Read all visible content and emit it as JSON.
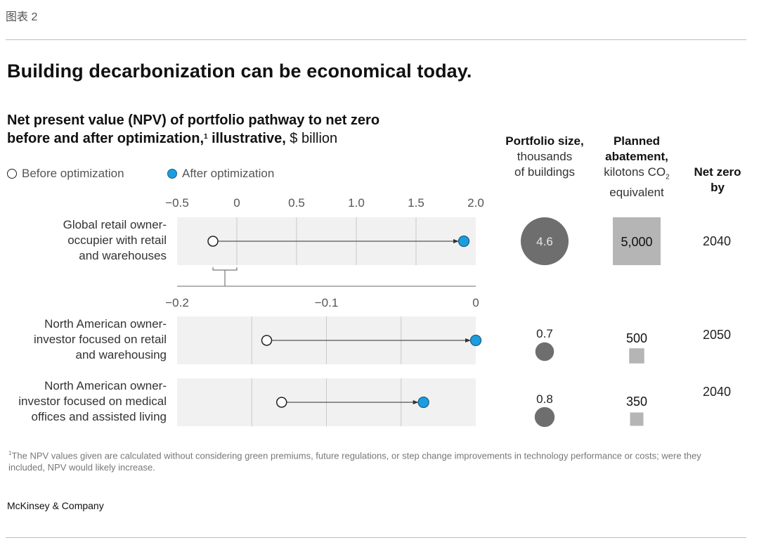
{
  "header": {
    "exhibit_label": "图表 2",
    "title": "Building decarbonization can be economical today.",
    "subtitle_line1": "Net present value (NPV) of portfolio pathway to net zero",
    "subtitle_line2_bold": "before and after optimization,",
    "subtitle_footnote_mark": "1",
    "subtitle_line2_bold_b": " illustrative,",
    "subtitle_unit": " $ billion"
  },
  "legend": {
    "before": "Before optimization",
    "after": "After optimization"
  },
  "columns": {
    "portfolio": {
      "bold": "Portfolio size,",
      "rest_line1": "thousands",
      "rest_line2": "of buildings"
    },
    "abatement": {
      "bold_line1": "Planned",
      "bold_line2": "abatement,",
      "rest_line1": "kilotons CO",
      "rest_sub": "2",
      "rest_line2": "equivalent"
    },
    "netzero": {
      "bold_line1": "Net zero",
      "bold_line2": "by"
    }
  },
  "colors": {
    "after_fill": "#1a9ee0",
    "after_stroke": "#1d5f86",
    "band_fill": "#f1f1f1",
    "portfolio_circle": "#6e6e6e",
    "abatement_square": "#b5b5b5"
  },
  "chart_data": {
    "type": "dumbbell",
    "title": "Net present value (NPV) of portfolio pathway to net zero before and after optimization, illustrative, $ billion",
    "legend": [
      "Before optimization",
      "After optimization"
    ],
    "legend_placement": "top-left",
    "axes": [
      {
        "id": "top",
        "range": [
          -0.5,
          2.0
        ],
        "ticks": [
          -0.5,
          0,
          0.5,
          1.0,
          1.5,
          2.0
        ],
        "tick_labels": [
          "−0.5",
          "0",
          "0.5",
          "1.0",
          "1.5",
          "2.0"
        ],
        "gridlines": [
          -0.5,
          0,
          0.5,
          1.0,
          1.5,
          2.0
        ]
      },
      {
        "id": "bottom",
        "range": [
          -0.2,
          0
        ],
        "ticks": [
          -0.2,
          -0.1,
          0
        ],
        "tick_labels": [
          "−0.2",
          "−0.1",
          "0"
        ],
        "gridlines": [
          -0.2,
          -0.15,
          -0.1,
          -0.05,
          0
        ],
        "zoom_bracket_from_top_axis": [
          -0.2,
          0
        ]
      }
    ],
    "rows": [
      {
        "label_lines": [
          "Global retail owner-",
          "occupier with retail",
          "and warehouses"
        ],
        "axis": "top",
        "before": -0.2,
        "after": 1.9,
        "portfolio_size_thousands": 4.6,
        "portfolio_label": "4.6",
        "abatement_kt": 5000,
        "abatement_label": "5,000",
        "net_zero_by": "2040"
      },
      {
        "label_lines": [
          "North American owner-",
          "investor focused on retail",
          "and warehousing"
        ],
        "axis": "bottom",
        "before": -0.14,
        "after": 0.0,
        "portfolio_size_thousands": 0.7,
        "portfolio_label": "0.7",
        "abatement_kt": 500,
        "abatement_label": "500",
        "net_zero_by": "2050"
      },
      {
        "label_lines": [
          "North American owner-",
          "investor focused on medical",
          "offices and assisted living"
        ],
        "axis": "bottom",
        "before": -0.13,
        "after": -0.035,
        "portfolio_size_thousands": 0.8,
        "portfolio_label": "0.8",
        "abatement_kt": 350,
        "abatement_label": "350",
        "net_zero_by": "2040"
      }
    ]
  },
  "footnote": {
    "mark": "1",
    "text": "The NPV values given are calculated without considering green premiums, future regulations, or step change improvements in technology performance or costs; were they included, NPV would likely increase."
  },
  "brand": "McKinsey & Company"
}
